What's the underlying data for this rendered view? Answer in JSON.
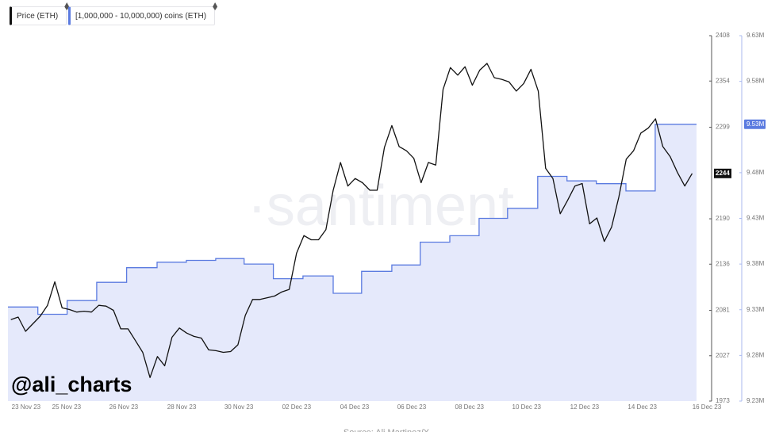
{
  "chart_data": {
    "type": "line",
    "xlim": [
      -0.85,
      22.65
    ],
    "xticks": [
      {
        "value": -0.23,
        "label": "23 Nov 23"
      },
      {
        "value": 1.15,
        "label": "25 Nov 23"
      },
      {
        "value": 3.1,
        "label": "26 Nov 23"
      },
      {
        "value": 5.08,
        "label": "28 Nov 23"
      },
      {
        "value": 7.03,
        "label": "30 Nov 23"
      },
      {
        "value": 9.0,
        "label": "02 Dec 23"
      },
      {
        "value": 10.98,
        "label": "04 Dec 23"
      },
      {
        "value": 12.93,
        "label": "06 Dec 23"
      },
      {
        "value": 14.9,
        "label": "08 Dec 23"
      },
      {
        "value": 16.85,
        "label": "10 Dec 23"
      },
      {
        "value": 18.83,
        "label": "12 Dec 23"
      },
      {
        "value": 20.8,
        "label": "14 Dec 23"
      },
      {
        "value": 23.0,
        "label": "16 Dec 23"
      }
    ],
    "ylim": [
      1973,
      2408
    ],
    "yticks": [
      1973,
      2027,
      2081,
      2136,
      2190,
      2299,
      2354,
      2408
    ],
    "y2lim": [
      9230000,
      9630000
    ],
    "y2ticks": [
      {
        "value": 9230000,
        "label": "9.23M"
      },
      {
        "value": 9280000,
        "label": "9.28M"
      },
      {
        "value": 9330000,
        "label": "9.33M"
      },
      {
        "value": 9380000,
        "label": "9.38M"
      },
      {
        "value": 9430000,
        "label": "9.43M"
      },
      {
        "value": 9480000,
        "label": "9.48M"
      },
      {
        "value": 9580000,
        "label": "9.58M"
      },
      {
        "value": 9630000,
        "label": "9.63M"
      }
    ],
    "watermark": "·santiment",
    "handle": "@ali_charts",
    "source": "Source: Ali Martinez/X",
    "series": [
      {
        "name": "[1,000,000 - 10,000,000) coins (ETH)",
        "type": "step-area",
        "axis": "y2",
        "color": "#5b7be0",
        "fill": "#e5e9fb",
        "x": [
          -0.85,
          0.17,
          1.17,
          2.18,
          3.2,
          4.24,
          5.24,
          6.24,
          7.21,
          8.21,
          9.22,
          10.25,
          11.22,
          12.25,
          13.22,
          14.23,
          15.23,
          16.2,
          17.23,
          18.23,
          19.23,
          20.24,
          21.24
        ],
        "values": [
          9333000,
          9325000,
          9340000,
          9360000,
          9376000,
          9382000,
          9384000,
          9386000,
          9380000,
          9364000,
          9367000,
          9348000,
          9372000,
          9379000,
          9404000,
          9411000,
          9430000,
          9441000,
          9476000,
          9471000,
          9468000,
          9460000,
          9533000
        ],
        "value_labels": [
          null,
          null,
          null,
          null,
          null,
          null,
          null,
          null,
          null,
          null,
          null,
          null,
          null,
          null,
          null,
          null,
          null,
          null,
          null,
          null,
          null,
          null,
          "9.53M"
        ]
      },
      {
        "name": "Price (ETH)",
        "type": "line",
        "color": "#111111",
        "last_value_badge": true,
        "x": [
          -0.75,
          -0.5,
          -0.25,
          0,
          0.25,
          0.5,
          0.75,
          1,
          1.25,
          1.5,
          1.75,
          2,
          2.25,
          2.5,
          2.75,
          3,
          3.25,
          3.5,
          3.75,
          4,
          4.25,
          4.5,
          4.75,
          5,
          5.25,
          5.5,
          5.75,
          6,
          6.25,
          6.5,
          6.75,
          7,
          7.25,
          7.5,
          7.75,
          8,
          8.25,
          8.5,
          8.75,
          9,
          9.25,
          9.5,
          9.75,
          10,
          10.25,
          10.5,
          10.75,
          11,
          11.25,
          11.5,
          11.75,
          12,
          12.25,
          12.5,
          12.75,
          13,
          13.25,
          13.5,
          13.75,
          14,
          14.25,
          14.5,
          14.75,
          15,
          15.25,
          15.5,
          15.75,
          16,
          16.25,
          16.5,
          16.75,
          17,
          17.25,
          17.5,
          17.75,
          18,
          18.25,
          18.5,
          18.75,
          19,
          19.25,
          19.5,
          19.75,
          20,
          20.25,
          20.5,
          20.75,
          21,
          21.25,
          21.5,
          21.75,
          22,
          22.25,
          22.5
        ],
        "values": [
          2070,
          2073,
          2056,
          2065,
          2074,
          2087,
          2115,
          2084,
          2082,
          2079,
          2080,
          2079,
          2087,
          2086,
          2081,
          2059,
          2059,
          2045,
          2031,
          2001,
          2026,
          2015,
          2049,
          2060,
          2054,
          2050,
          2048,
          2034,
          2033,
          2031,
          2032,
          2040,
          2075,
          2094,
          2094,
          2096,
          2098,
          2103,
          2106,
          2149,
          2170,
          2165,
          2165,
          2177,
          2224,
          2257,
          2229,
          2238,
          2233,
          2224,
          2224,
          2275,
          2301,
          2276,
          2271,
          2262,
          2233,
          2257,
          2254,
          2344,
          2370,
          2361,
          2371,
          2349,
          2367,
          2375,
          2358,
          2356,
          2353,
          2342,
          2351,
          2368,
          2342,
          2250,
          2238,
          2196,
          2212,
          2229,
          2232,
          2184,
          2191,
          2163,
          2180,
          2216,
          2261,
          2271,
          2292,
          2298,
          2309,
          2276,
          2264,
          2245,
          2229,
          2244
        ]
      }
    ]
  }
}
